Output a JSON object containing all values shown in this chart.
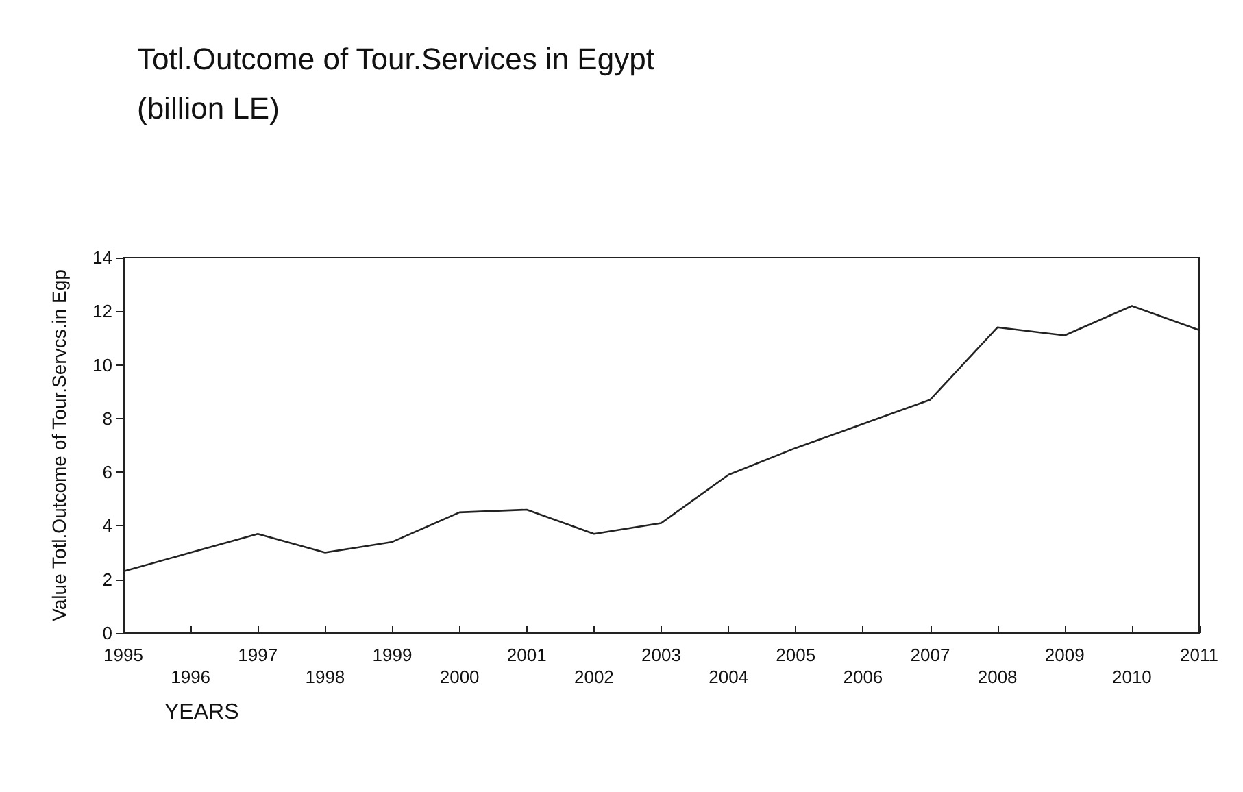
{
  "chart_data": {
    "type": "line",
    "title": "Totl.Outcome of Tour.Services in Egypt\n(billion LE)",
    "xlabel": "YEARS",
    "ylabel": "Value Totl.Outcome of Tour.Servcs.in Egp",
    "categories": [
      "1995",
      "1996",
      "1997",
      "1998",
      "1999",
      "2000",
      "2001",
      "2002",
      "2003",
      "2004",
      "2005",
      "2006",
      "2007",
      "2008",
      "2009",
      "2010",
      "2011"
    ],
    "series": [
      {
        "color": "#222222",
        "values": [
          2.3,
          3.0,
          3.7,
          3.0,
          3.4,
          4.5,
          4.6,
          3.7,
          4.1,
          5.9,
          6.9,
          7.8,
          8.7,
          11.4,
          11.1,
          12.2,
          11.3
        ]
      }
    ],
    "ylim": [
      0,
      14
    ],
    "yticks": [
      0,
      2,
      4,
      6,
      8,
      10,
      12,
      14
    ],
    "grid": false,
    "marker": "none",
    "line_style": "solid"
  }
}
